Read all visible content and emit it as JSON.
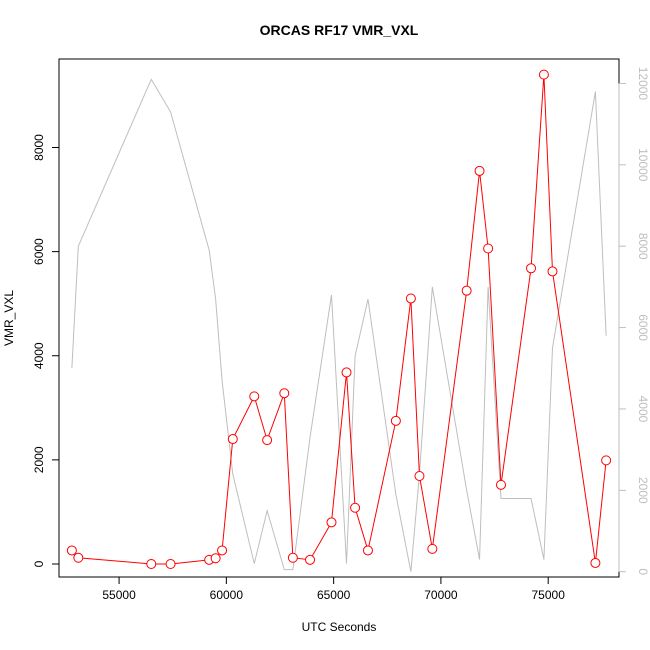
{
  "chart_data": {
    "type": "line",
    "title": "ORCAS RF17 VMR_VXL",
    "xlabel": "UTC Seconds",
    "ylabel": "VMR_VXL",
    "xlim": [
      52200,
      78300
    ],
    "ylim_left": [
      -250,
      9700
    ],
    "ylim_right": [
      -130,
      12600
    ],
    "x_ticks": [
      55000,
      60000,
      65000,
      70000,
      75000
    ],
    "y_ticks_left": [
      0,
      2000,
      4000,
      6000,
      8000
    ],
    "y_ticks_right": [
      0,
      2000,
      4000,
      6000,
      8000,
      10000,
      12000
    ],
    "grid": false,
    "series": [
      {
        "axis": "left",
        "color": "#ff0000",
        "markers": "open-circle",
        "x": [
          52800,
          53100,
          56500,
          57400,
          59200,
          59500,
          59800,
          60300,
          61300,
          61900,
          62700,
          63100,
          63900,
          64900,
          65600,
          66000,
          66600,
          67900,
          68600,
          69000,
          69600,
          71200,
          71800,
          72200,
          72800,
          74200,
          74800,
          75200,
          77200,
          77700
        ],
        "values": [
          260,
          120,
          0,
          0,
          80,
          110,
          260,
          2400,
          3220,
          2380,
          3280,
          120,
          80,
          800,
          3680,
          1080,
          260,
          2750,
          5100,
          1690,
          290,
          5250,
          7550,
          6060,
          1520,
          5680,
          9400,
          5620,
          20,
          1990
        ]
      },
      {
        "axis": "right",
        "color": "#bebebe",
        "markers": "none",
        "x": [
          52800,
          53100,
          56500,
          57400,
          59200,
          59500,
          59800,
          60300,
          61300,
          61900,
          62700,
          63100,
          63900,
          64900,
          65600,
          66000,
          66600,
          67900,
          68600,
          69000,
          69600,
          71200,
          71800,
          72200,
          72800,
          74200,
          74800,
          75200,
          77200,
          77700
        ],
        "values": [
          5000,
          8000,
          12100,
          11300,
          7900,
          6700,
          4700,
          2400,
          200,
          1500,
          50,
          50,
          3300,
          6800,
          200,
          5300,
          6700,
          1900,
          0,
          2400,
          7000,
          2000,
          300,
          7000,
          1800,
          1800,
          300,
          5500,
          11800,
          5800
        ]
      }
    ]
  }
}
